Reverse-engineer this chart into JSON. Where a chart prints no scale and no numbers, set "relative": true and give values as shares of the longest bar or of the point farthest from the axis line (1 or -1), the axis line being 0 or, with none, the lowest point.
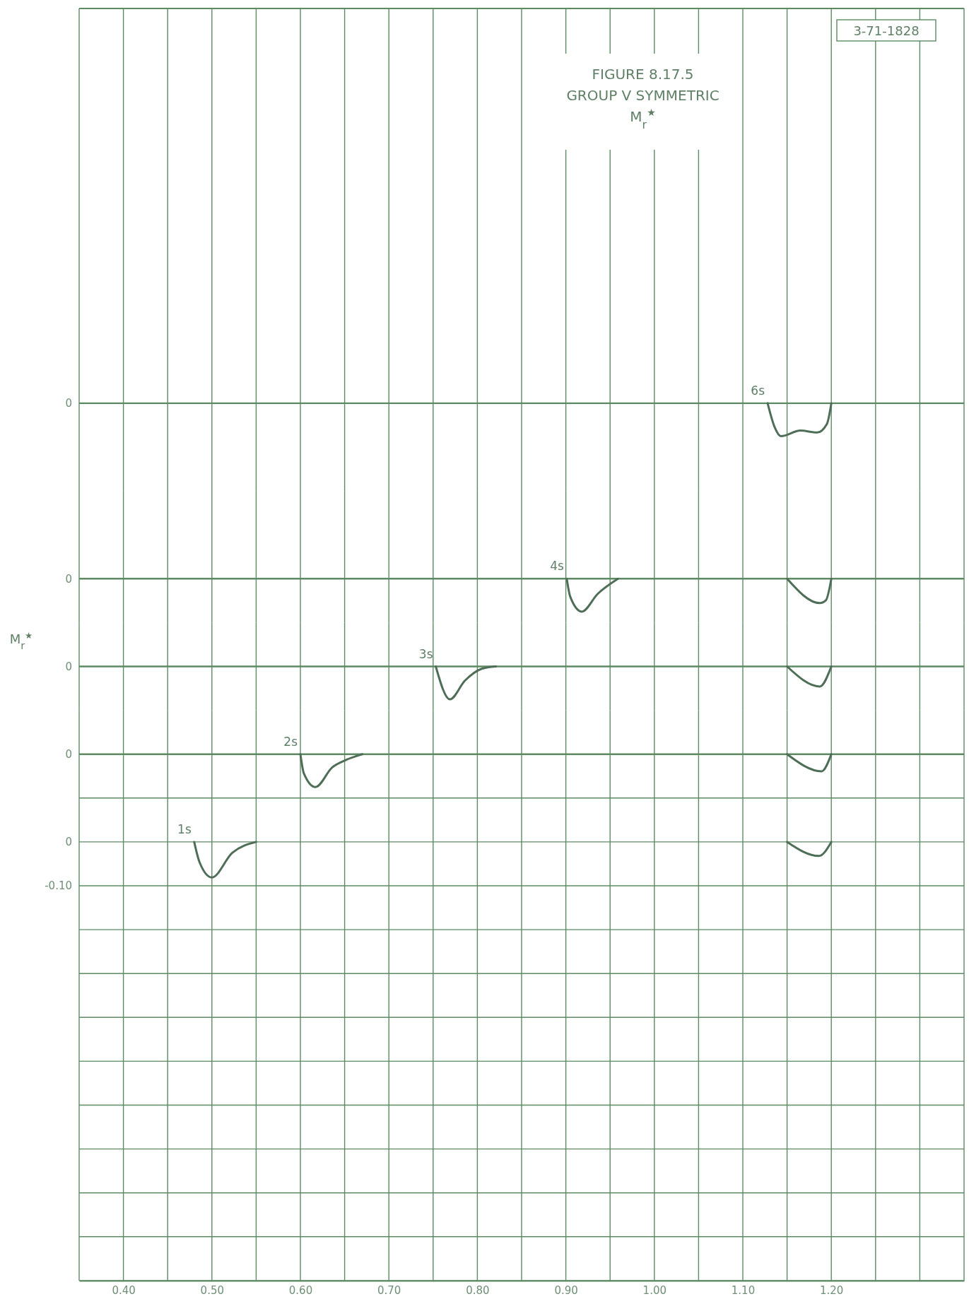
{
  "chart_data": [
    {
      "type": "line",
      "title": "FIGURE 8.17.5",
      "subtitle": "GROUP V SYMMETRIC\nM$_{r}$$^{★}$",
      "annotations": [
        "3-71-1828",
        "0"
      ],
      "relative": true,
      "series": [
        {
          "name": "6s",
          "color": "#4f6e58",
          "x": [
            1.128,
            1.136,
            1.143,
            1.165,
            1.184,
            1.195,
            1.2
          ],
          "values": [
            0,
            -0.73,
            -1,
            -0.83,
            -0.89,
            -0.63,
            0
          ]
        }
      ],
      "xlim": [
        0.35,
        1.35
      ],
      "xticks": [
        {
          "value": 0.35,
          "label": null
        },
        {
          "value": 0.4,
          "label": null
        },
        {
          "value": 0.45,
          "label": null
        },
        {
          "value": 0.5,
          "label": null
        },
        {
          "value": 0.55,
          "label": null
        },
        {
          "value": 0.6,
          "label": null
        },
        {
          "value": 0.65,
          "label": null
        },
        {
          "value": 0.7,
          "label": null
        },
        {
          "value": 0.75,
          "label": null
        },
        {
          "value": 0.8,
          "label": null
        },
        {
          "value": 0.85,
          "label": null
        },
        {
          "value": 0.9,
          "label": null
        },
        {
          "value": 0.95,
          "label": null
        },
        {
          "value": 1.0,
          "label": null
        },
        {
          "value": 1.05,
          "label": null
        },
        {
          "value": 1.1,
          "label": null
        },
        {
          "value": 1.15,
          "label": null
        },
        {
          "value": 1.2,
          "label": null
        },
        {
          "value": 1.25,
          "label": null
        },
        {
          "value": 1.3,
          "label": null
        },
        {
          "value": 1.35,
          "label": null
        }
      ],
      "grid": "x",
      "tick_labels": false
    },
    {
      "type": "line",
      "annotations": [
        "0"
      ],
      "relative": true,
      "series": [
        {
          "name": "4s",
          "color": "#4f6e58",
          "x": [
            0.901,
            0.905,
            0.918,
            0.936,
            0.959
          ],
          "values": [
            0,
            -0.55,
            -1,
            -0.46,
            0
          ]
        },
        {
          "color": "#4f6e58",
          "x": [
            1.15,
            1.187,
            1.194,
            1.2
          ],
          "values": [
            0,
            -0.74,
            -0.65,
            0
          ]
        }
      ],
      "xlim": [
        0.35,
        1.35
      ],
      "xticks": [
        {
          "value": 0.35,
          "label": null
        },
        {
          "value": 0.4,
          "label": null
        },
        {
          "value": 0.45,
          "label": null
        },
        {
          "value": 0.5,
          "label": null
        },
        {
          "value": 0.55,
          "label": null
        },
        {
          "value": 0.6,
          "label": null
        },
        {
          "value": 0.65,
          "label": null
        },
        {
          "value": 0.7,
          "label": null
        },
        {
          "value": 0.75,
          "label": null
        },
        {
          "value": 0.8,
          "label": null
        },
        {
          "value": 0.85,
          "label": null
        },
        {
          "value": 0.9,
          "label": null
        },
        {
          "value": 0.95,
          "label": null
        },
        {
          "value": 1.0,
          "label": null
        },
        {
          "value": 1.05,
          "label": null
        },
        {
          "value": 1.1,
          "label": null
        },
        {
          "value": 1.15,
          "label": null
        },
        {
          "value": 1.2,
          "label": null
        },
        {
          "value": 1.25,
          "label": null
        },
        {
          "value": 1.3,
          "label": null
        },
        {
          "value": 1.35,
          "label": null
        }
      ],
      "grid": "x",
      "tick_labels": false
    },
    {
      "type": "line",
      "ylabel": "M$_{r}$$^{★}$",
      "annotations": [
        "0"
      ],
      "relative": true,
      "series": [
        {
          "name": "3s",
          "color": "#4f6e58",
          "x": [
            0.753,
            0.769,
            0.786,
            0.805,
            0.821
          ],
          "values": [
            0,
            -1,
            -0.43,
            -0.07,
            0
          ]
        },
        {
          "color": "#4f6e58",
          "x": [
            1.15,
            1.187,
            1.2
          ],
          "values": [
            0,
            -0.61,
            0
          ]
        }
      ],
      "xlim": [
        0.35,
        1.35
      ],
      "xticks": [
        {
          "value": 0.35,
          "label": null
        },
        {
          "value": 0.4,
          "label": null
        },
        {
          "value": 0.45,
          "label": null
        },
        {
          "value": 0.5,
          "label": null
        },
        {
          "value": 0.55,
          "label": null
        },
        {
          "value": 0.6,
          "label": null
        },
        {
          "value": 0.65,
          "label": null
        },
        {
          "value": 0.7,
          "label": null
        },
        {
          "value": 0.75,
          "label": null
        },
        {
          "value": 0.8,
          "label": null
        },
        {
          "value": 0.85,
          "label": null
        },
        {
          "value": 0.9,
          "label": null
        },
        {
          "value": 0.95,
          "label": null
        },
        {
          "value": 1.0,
          "label": null
        },
        {
          "value": 1.05,
          "label": null
        },
        {
          "value": 1.1,
          "label": null
        },
        {
          "value": 1.15,
          "label": null
        },
        {
          "value": 1.2,
          "label": null
        },
        {
          "value": 1.25,
          "label": null
        },
        {
          "value": 1.3,
          "label": null
        },
        {
          "value": 1.35,
          "label": null
        }
      ],
      "grid": "x",
      "tick_labels": false
    },
    {
      "type": "line",
      "annotations": [
        "0"
      ],
      "relative": true,
      "series": [
        {
          "name": "2s",
          "color": "#4f6e58",
          "x": [
            0.6,
            0.604,
            0.617,
            0.636,
            0.652,
            0.67
          ],
          "values": [
            0,
            -0.59,
            -1,
            -0.4,
            -0.17,
            0
          ]
        },
        {
          "color": "#4f6e58",
          "x": [
            1.15,
            1.189,
            1.2
          ],
          "values": [
            0,
            -0.52,
            0
          ]
        }
      ],
      "xlim": [
        0.35,
        1.35
      ],
      "xticks": [
        {
          "value": 0.35,
          "label": null
        },
        {
          "value": 0.4,
          "label": null
        },
        {
          "value": 0.45,
          "label": null
        },
        {
          "value": 0.5,
          "label": null
        },
        {
          "value": 0.55,
          "label": null
        },
        {
          "value": 0.6,
          "label": null
        },
        {
          "value": 0.65,
          "label": null
        },
        {
          "value": 0.7,
          "label": null
        },
        {
          "value": 0.75,
          "label": null
        },
        {
          "value": 0.8,
          "label": null
        },
        {
          "value": 0.85,
          "label": null
        },
        {
          "value": 0.9,
          "label": null
        },
        {
          "value": 0.95,
          "label": null
        },
        {
          "value": 1.0,
          "label": null
        },
        {
          "value": 1.05,
          "label": null
        },
        {
          "value": 1.1,
          "label": null
        },
        {
          "value": 1.15,
          "label": null
        },
        {
          "value": 1.2,
          "label": null
        },
        {
          "value": 1.25,
          "label": null
        },
        {
          "value": 1.3,
          "label": null
        },
        {
          "value": 1.35,
          "label": null
        }
      ],
      "grid": "x",
      "tick_labels": false
    },
    {
      "type": "line",
      "series": [
        {
          "name": "1s",
          "color": "#4f6e58",
          "x": [
            0.48,
            0.486,
            0.5,
            0.523,
            0.55
          ],
          "values": [
            0,
            -0.046,
            -0.081,
            -0.025,
            0
          ]
        },
        {
          "color": "#4f6e58",
          "x": [
            1.15,
            1.186,
            1.2
          ],
          "values": [
            0,
            -0.032,
            0
          ]
        }
      ],
      "xlim": [
        0.35,
        1.35
      ],
      "xticks": [
        {
          "value": 0.35,
          "label": null
        },
        {
          "value": 0.4,
          "label": "0.40"
        },
        {
          "value": 0.45,
          "label": null
        },
        {
          "value": 0.5,
          "label": "0.50"
        },
        {
          "value": 0.55,
          "label": null
        },
        {
          "value": 0.6,
          "label": "0.60"
        },
        {
          "value": 0.65,
          "label": null
        },
        {
          "value": 0.7,
          "label": "0.70"
        },
        {
          "value": 0.75,
          "label": null
        },
        {
          "value": 0.8,
          "label": "0.80"
        },
        {
          "value": 0.85,
          "label": null
        },
        {
          "value": 0.9,
          "label": "0.90"
        },
        {
          "value": 0.95,
          "label": null
        },
        {
          "value": 1.0,
          "label": "1.00"
        },
        {
          "value": 1.05,
          "label": null
        },
        {
          "value": 1.1,
          "label": "1.10"
        },
        {
          "value": 1.15,
          "label": null
        },
        {
          "value": 1.2,
          "label": "1.20"
        },
        {
          "value": 1.25,
          "label": null
        },
        {
          "value": 1.3,
          "label": null
        },
        {
          "value": 1.35,
          "label": null
        }
      ],
      "ylim": [
        -1.0,
        0.1
      ],
      "yticks": [
        {
          "value": -1.0,
          "label": null
        },
        {
          "value": -0.9,
          "label": null
        },
        {
          "value": -0.8,
          "label": null
        },
        {
          "value": -0.7,
          "label": null
        },
        {
          "value": -0.6,
          "label": null
        },
        {
          "value": -0.5,
          "label": null
        },
        {
          "value": -0.4,
          "label": null
        },
        {
          "value": -0.3,
          "label": null
        },
        {
          "value": -0.2,
          "label": null
        },
        {
          "value": -0.1,
          "label": "-0.10"
        },
        {
          "value": 0,
          "label": "0"
        },
        {
          "value": 0.1,
          "label": null
        }
      ],
      "grid": true
    }
  ]
}
